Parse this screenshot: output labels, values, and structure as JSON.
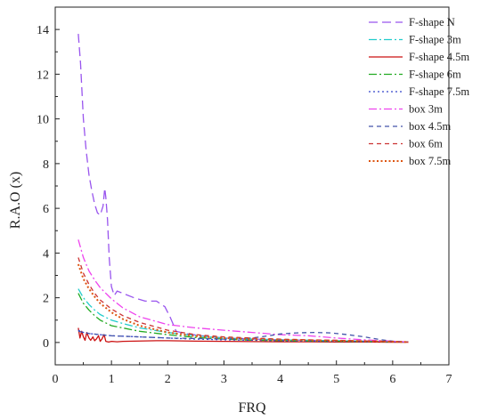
{
  "chart_data": {
    "type": "line",
    "xlabel": "FRQ",
    "ylabel": "R.A.O (x)",
    "xlim": [
      0,
      7
    ],
    "ylim": [
      -1,
      15
    ],
    "xticks": [
      0,
      1,
      2,
      3,
      4,
      5,
      6,
      7
    ],
    "yticks": [
      0,
      2,
      4,
      6,
      8,
      10,
      12,
      14
    ],
    "grid": false,
    "legend_position": "top-right",
    "series": [
      {
        "name": "F-shape N",
        "color": "#9955ee",
        "dash": "dash-long",
        "x": [
          0.41,
          0.45,
          0.5,
          0.55,
          0.6,
          0.65,
          0.7,
          0.75,
          0.8,
          0.85,
          0.88,
          0.9,
          0.93,
          0.96,
          1.0,
          1.05,
          1.1,
          1.2,
          1.4,
          1.6,
          1.8,
          1.95,
          2.05,
          2.15,
          2.3,
          2.6,
          3.0,
          3.5,
          4.0,
          4.5,
          5.0,
          5.5,
          6.0,
          6.28
        ],
        "y": [
          13.8,
          12.5,
          10.0,
          8.6,
          7.5,
          6.8,
          6.2,
          5.8,
          5.7,
          6.1,
          6.9,
          6.5,
          5.5,
          3.8,
          2.5,
          2.1,
          2.3,
          2.2,
          2.0,
          1.85,
          1.85,
          1.6,
          1.1,
          0.5,
          0.4,
          0.3,
          0.2,
          0.15,
          0.12,
          0.1,
          0.08,
          0.06,
          0.04,
          0.02
        ]
      },
      {
        "name": "F-shape 3m",
        "color": "#22cccc",
        "dash": "dash-dot",
        "x": [
          0.41,
          0.5,
          0.6,
          0.7,
          0.8,
          1.0,
          1.2,
          1.5,
          2.0,
          2.5,
          3.0,
          3.5,
          4.0,
          4.5,
          5.0,
          5.5,
          6.0,
          6.28
        ],
        "y": [
          2.4,
          2.0,
          1.7,
          1.45,
          1.25,
          1.0,
          0.85,
          0.65,
          0.45,
          0.3,
          0.2,
          0.15,
          0.12,
          0.1,
          0.08,
          0.06,
          0.04,
          0.02
        ]
      },
      {
        "name": "F-shape 4.5m",
        "color": "#cc1111",
        "dash": "solid",
        "x": [
          0.41,
          0.44,
          0.47,
          0.5,
          0.53,
          0.56,
          0.6,
          0.63,
          0.67,
          0.7,
          0.73,
          0.77,
          0.8,
          0.83,
          0.87,
          0.9,
          0.95,
          1.0,
          1.1,
          1.2,
          1.4,
          1.6,
          1.8,
          2.0,
          2.5,
          3.0,
          3.5,
          4.0,
          4.5,
          5.0,
          5.5,
          6.0,
          6.28
        ],
        "y": [
          0.65,
          0.2,
          0.5,
          0.25,
          0.1,
          0.45,
          0.2,
          0.1,
          0.25,
          0.08,
          0.15,
          0.3,
          0.05,
          0.15,
          0.35,
          0.05,
          0.02,
          0.05,
          0.03,
          0.05,
          0.06,
          0.07,
          0.08,
          0.08,
          0.06,
          0.05,
          0.04,
          0.03,
          0.03,
          0.02,
          0.02,
          0.01,
          0.01
        ]
      },
      {
        "name": "F-shape 6m",
        "color": "#22aa22",
        "dash": "dash-dot",
        "x": [
          0.41,
          0.5,
          0.6,
          0.7,
          0.8,
          1.0,
          1.2,
          1.5,
          2.0,
          2.5,
          3.0,
          3.5,
          4.0,
          4.5,
          5.0,
          5.5,
          6.0,
          6.28
        ],
        "y": [
          2.2,
          1.75,
          1.45,
          1.2,
          1.0,
          0.75,
          0.65,
          0.5,
          0.35,
          0.22,
          0.15,
          0.1,
          0.08,
          0.06,
          0.05,
          0.04,
          0.03,
          0.02
        ]
      },
      {
        "name": "F-shape 7.5m",
        "color": "#3344cc",
        "dash": "dot",
        "x": [
          0.41,
          0.5,
          0.6,
          0.8,
          1.0,
          1.5,
          2.0,
          2.5,
          3.0,
          3.5,
          4.0,
          4.5,
          5.0,
          5.5,
          6.0,
          6.28
        ],
        "y": [
          0.55,
          0.45,
          0.4,
          0.35,
          0.3,
          0.25,
          0.2,
          0.15,
          0.12,
          0.1,
          0.08,
          0.06,
          0.05,
          0.04,
          0.03,
          0.02
        ]
      },
      {
        "name": "box 3m",
        "color": "#ee44ee",
        "dash": "dash-dot",
        "x": [
          0.41,
          0.5,
          0.6,
          0.7,
          0.8,
          1.0,
          1.2,
          1.5,
          2.0,
          2.5,
          3.0,
          3.5,
          4.0,
          4.5,
          5.0,
          5.5,
          6.0,
          6.28
        ],
        "y": [
          4.6,
          3.8,
          3.2,
          2.8,
          2.45,
          1.95,
          1.55,
          1.15,
          0.8,
          0.65,
          0.55,
          0.45,
          0.35,
          0.3,
          0.2,
          0.12,
          0.06,
          0.02
        ]
      },
      {
        "name": "box 4.5m",
        "color": "#4455aa",
        "dash": "dash-short",
        "x": [
          0.41,
          0.6,
          0.8,
          1.0,
          1.5,
          2.0,
          2.5,
          3.0,
          3.5,
          3.8,
          4.0,
          4.3,
          4.6,
          4.9,
          5.2,
          5.5,
          5.8,
          6.0,
          6.28
        ],
        "y": [
          0.5,
          0.4,
          0.35,
          0.3,
          0.25,
          0.2,
          0.18,
          0.15,
          0.2,
          0.3,
          0.38,
          0.43,
          0.45,
          0.43,
          0.35,
          0.25,
          0.12,
          0.06,
          0.02
        ]
      },
      {
        "name": "box 6m",
        "color": "#cc3333",
        "dash": "dash-short",
        "x": [
          0.41,
          0.5,
          0.6,
          0.7,
          0.8,
          1.0,
          1.2,
          1.5,
          2.0,
          2.5,
          3.0,
          3.5,
          4.0,
          4.5,
          5.0,
          5.5,
          6.0,
          6.28
        ],
        "y": [
          3.8,
          3.1,
          2.6,
          2.2,
          1.9,
          1.5,
          1.2,
          0.9,
          0.55,
          0.35,
          0.25,
          0.2,
          0.15,
          0.12,
          0.1,
          0.07,
          0.04,
          0.02
        ]
      },
      {
        "name": "box 7.5m",
        "color": "#dd5511",
        "dash": "dot-thick",
        "x": [
          0.41,
          0.5,
          0.6,
          0.7,
          0.8,
          1.0,
          1.2,
          1.5,
          2.0,
          2.5,
          3.0,
          3.5,
          4.0,
          4.5,
          5.0,
          5.5,
          6.0,
          6.28
        ],
        "y": [
          3.5,
          2.85,
          2.4,
          2.05,
          1.75,
          1.35,
          1.05,
          0.75,
          0.45,
          0.28,
          0.2,
          0.15,
          0.12,
          0.1,
          0.08,
          0.06,
          0.04,
          0.02
        ]
      }
    ]
  }
}
